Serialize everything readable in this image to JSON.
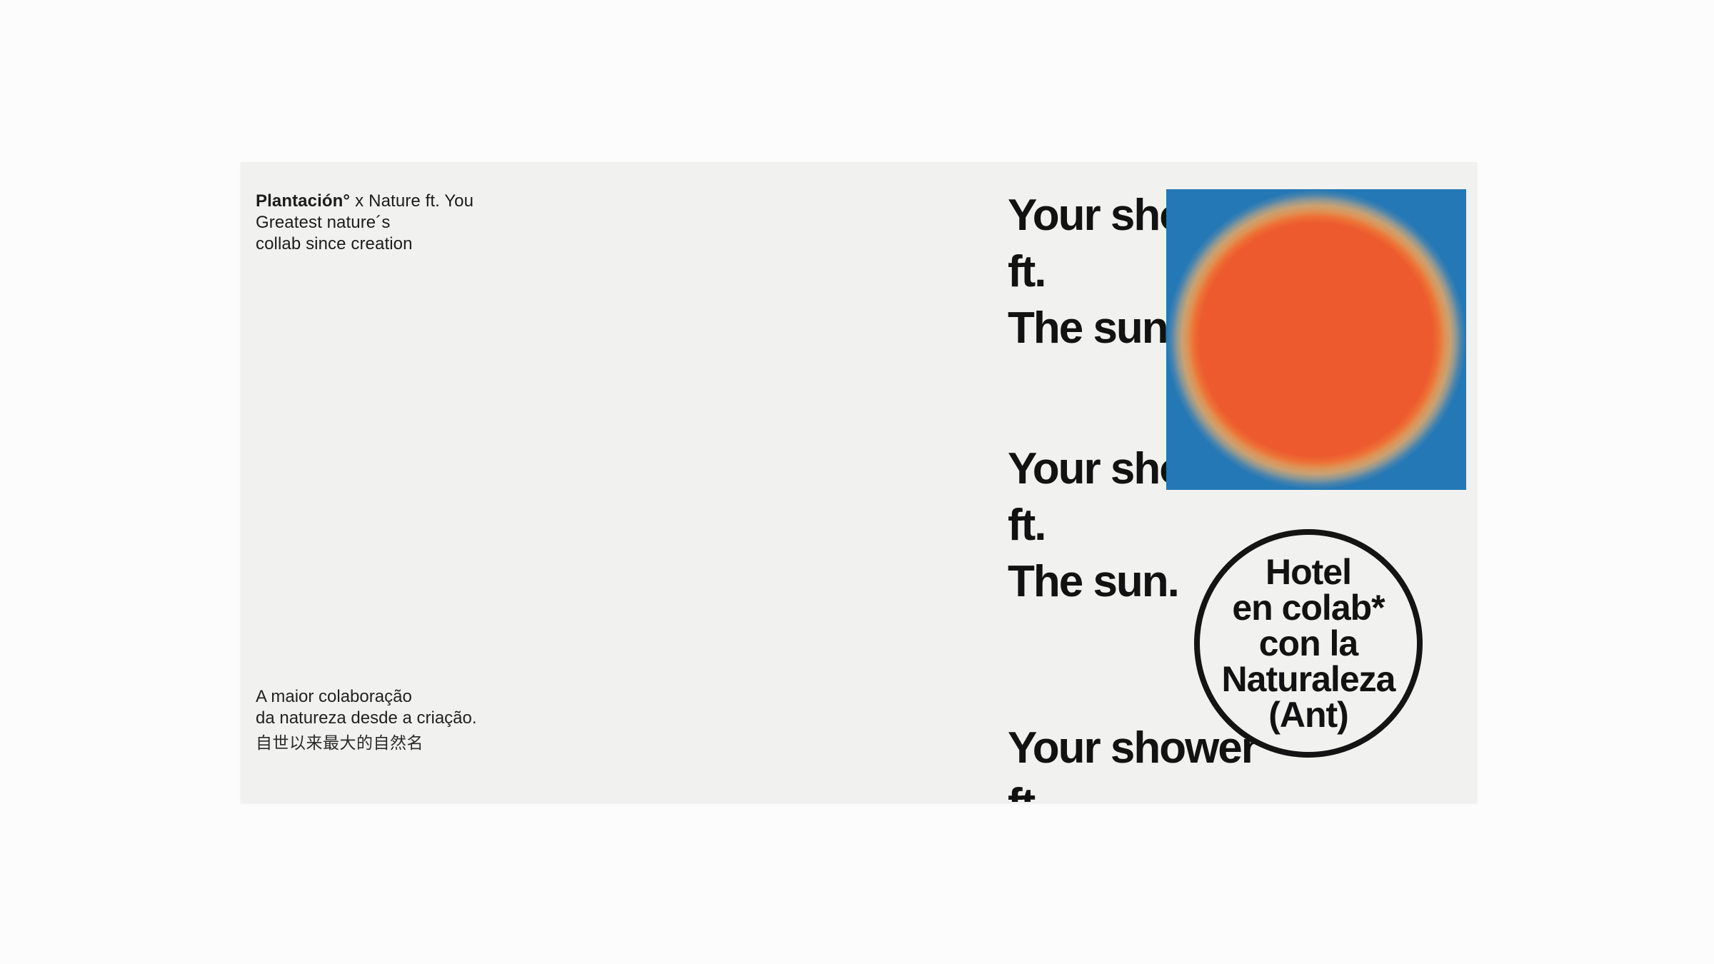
{
  "poster": {
    "brand": {
      "name": "Plantación°",
      "separator": "x",
      "partner": "Nature ft. You",
      "tagline_line1": "Greatest nature´s",
      "tagline_line2": "collab since creation"
    },
    "headline": {
      "line1": "Your shower",
      "line2": "ft.",
      "line3": "The sun."
    },
    "badge": {
      "line1": "Hotel",
      "line2": "en colab*",
      "line3": "con la",
      "line4": "Naturaleza",
      "line5": "(Ant)"
    },
    "footer": {
      "pt_line1": "A maior colaboração",
      "pt_line2": "da natureza desde a criação.",
      "zh_line": "自世以来最大的自然名"
    },
    "colors": {
      "background": "#fcfcfc",
      "panel": "#f1f1ef",
      "text": "#161616",
      "sun_blue": "#2478b5",
      "sun_orange": "#ec5a2e",
      "sun_halo_tan": "#c9a173"
    }
  }
}
